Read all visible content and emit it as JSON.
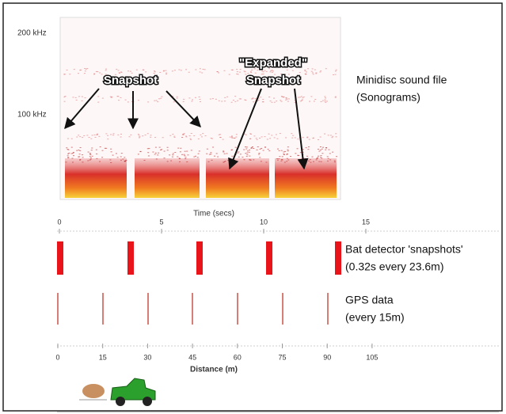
{
  "sonogram": {
    "y_labels": [
      "200 kHz",
      "100 kHz"
    ],
    "snapshot_label": "Snapshot",
    "expanded_label": [
      "\"Expanded\"",
      "Snapshot"
    ],
    "file_label": [
      "Minidisc sound file",
      "(Sonograms)"
    ]
  },
  "time_axis": {
    "label": "Time (secs)",
    "ticks": [
      0,
      5,
      10,
      15
    ]
  },
  "bat_detector": {
    "label": [
      "Bat detector 'snapshots'",
      "(0.32s every 23.6m)"
    ]
  },
  "gps": {
    "label": [
      "GPS data",
      "(every 15m)"
    ]
  },
  "distance_axis": {
    "label": "Distance (m)",
    "ticks": [
      0,
      15,
      30,
      45,
      60,
      75,
      90,
      105
    ]
  }
}
